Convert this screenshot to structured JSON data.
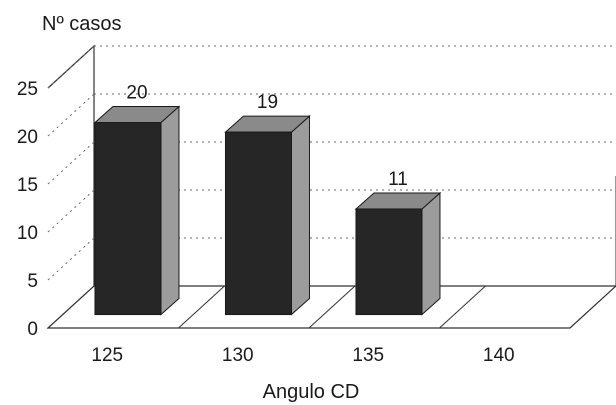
{
  "chart_data": {
    "type": "bar",
    "ylabel": "Nº casos",
    "xlabel": "Angulo CD",
    "categories": [
      "125",
      "130",
      "135",
      "140"
    ],
    "values": [
      20,
      19,
      11,
      0
    ],
    "data_labels": [
      "20",
      "19",
      "11",
      ""
    ],
    "ylim": [
      0,
      25
    ],
    "yticks": [
      0,
      5,
      10,
      15,
      20,
      25
    ],
    "grid": true,
    "style": "3d",
    "colors": {
      "bar_front": "#262626",
      "bar_top": "#8a8a8a",
      "bar_side": "#9c9c9c",
      "axis": "#333333",
      "grid": "#666666"
    }
  }
}
